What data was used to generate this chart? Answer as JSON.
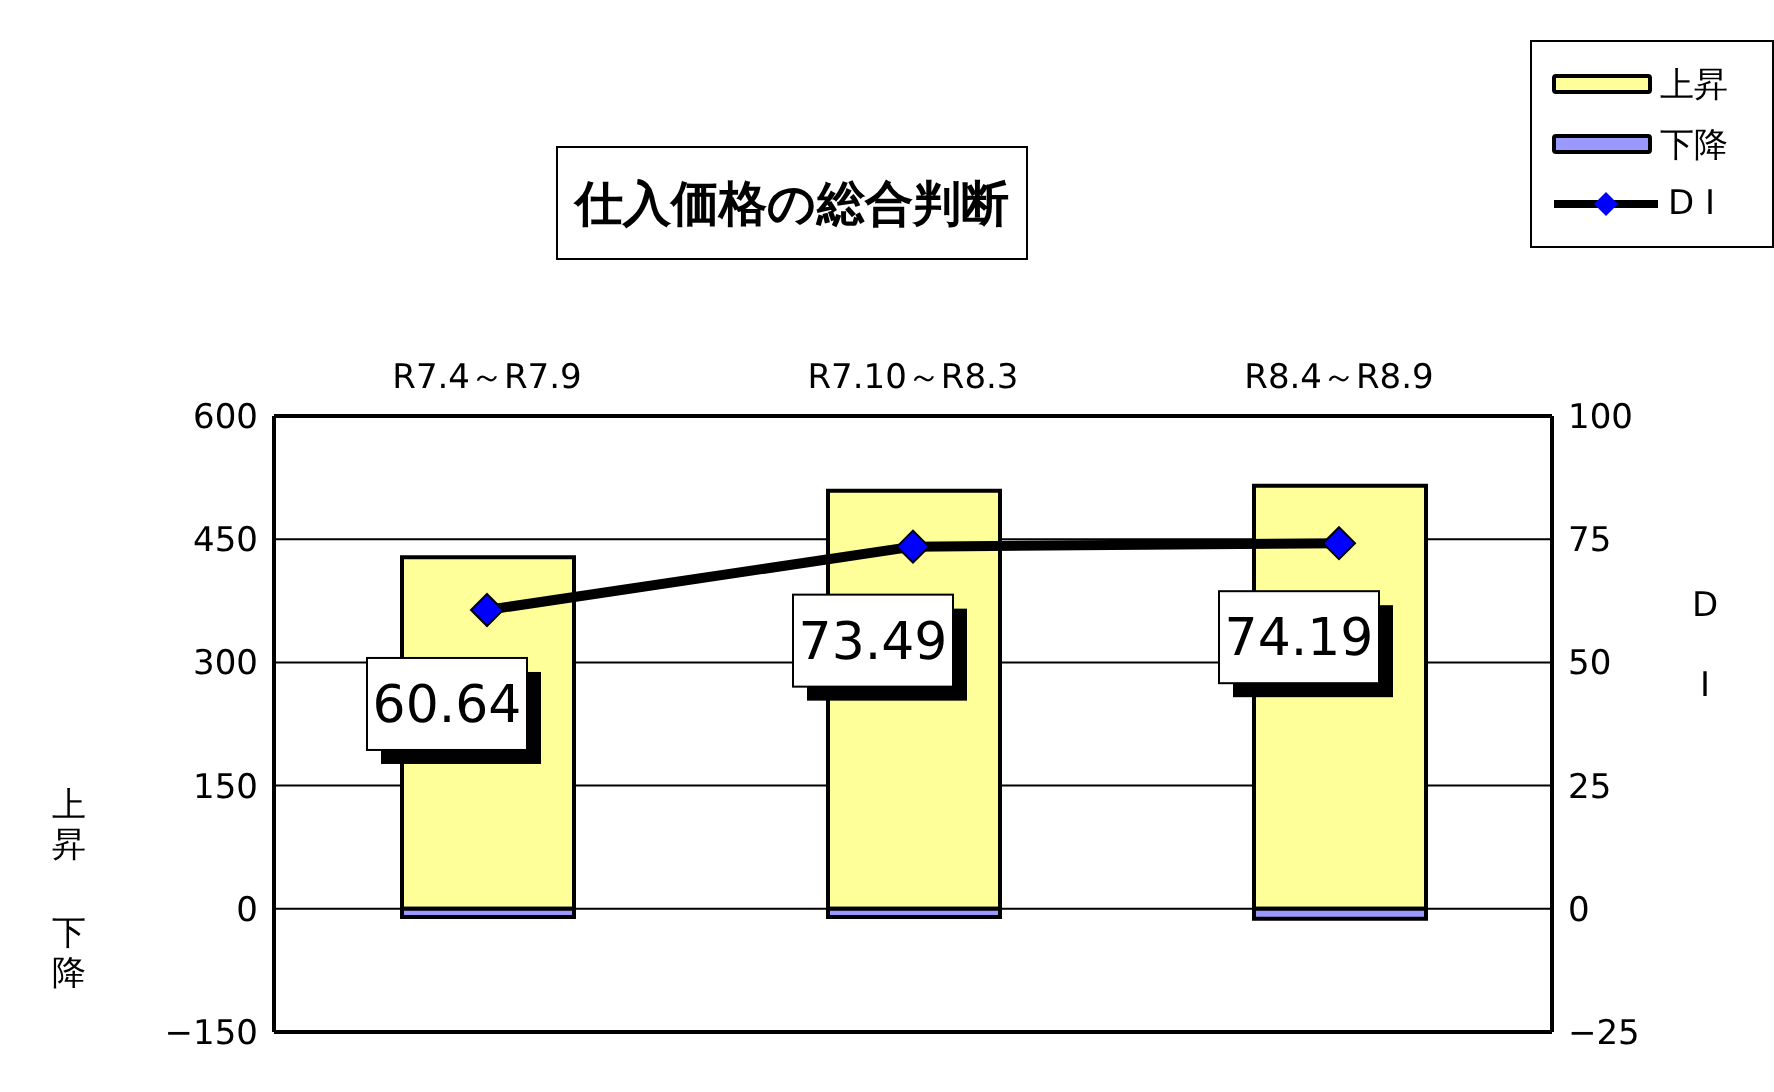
{
  "chart_data": {
    "type": "bar",
    "title": "仕入価格の総合判断",
    "ylabel": "上昇下降",
    "y2label": "D I",
    "categories": [
      "R7.4～R7.9",
      "R7.10～R8.3",
      "R8.4～R8.9"
    ],
    "stacked": true,
    "series": [
      {
        "name": "上昇",
        "color": "#ffff99",
        "values": [
          428,
          509,
          515
        ]
      },
      {
        "name": "下降",
        "color": "#9999ff",
        "values": [
          -10,
          -10,
          -12
        ]
      },
      {
        "name": "D I",
        "type": "line",
        "axis": "y2",
        "color": "#000000",
        "values": [
          60.64,
          73.49,
          74.19
        ],
        "data_labels": true
      }
    ],
    "marker": "diamond",
    "ylim": [
      -150,
      600
    ],
    "yticks": [
      -150,
      0,
      150,
      300,
      450,
      600
    ],
    "y2lim": [
      -25,
      100
    ],
    "y2ticks": [
      -25,
      0,
      25,
      50,
      75,
      100
    ],
    "grid": "y",
    "legend": "top right"
  }
}
